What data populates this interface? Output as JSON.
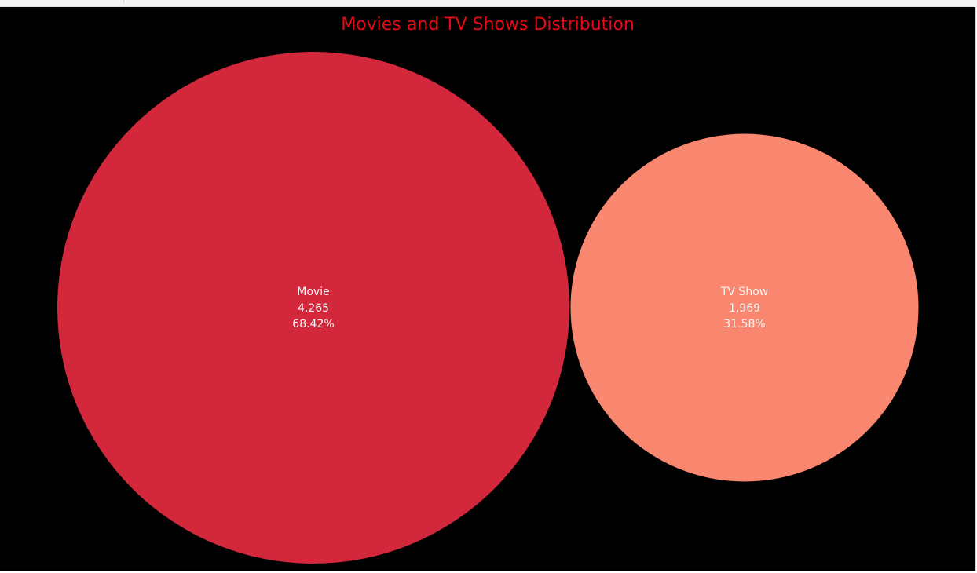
{
  "colors": {
    "background": "#000000",
    "title": "#e50914"
  },
  "chart_data": {
    "type": "bubble",
    "title": "Movies and TV Shows Distribution",
    "items": [
      {
        "label": "Movie",
        "count": 4265,
        "count_text": "4,265",
        "percent": 68.42,
        "percent_text": "68.42%",
        "color": "#d3283c"
      },
      {
        "label": "TV Show",
        "count": 1969,
        "count_text": "1,969",
        "percent": 31.58,
        "percent_text": "31.58%",
        "color": "#f9876f"
      }
    ]
  }
}
